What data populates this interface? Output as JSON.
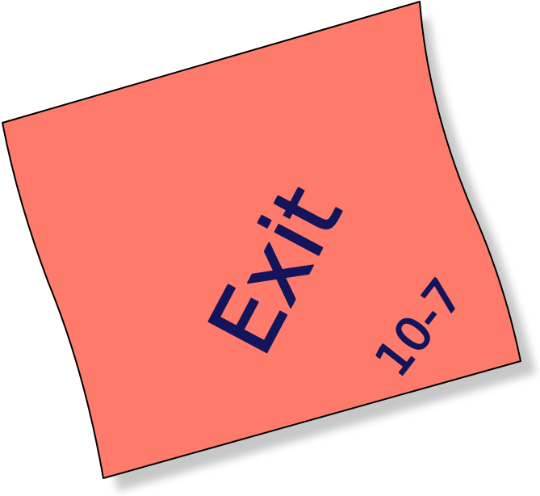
{
  "note": {
    "text": "Exit",
    "number": "10-7"
  }
}
